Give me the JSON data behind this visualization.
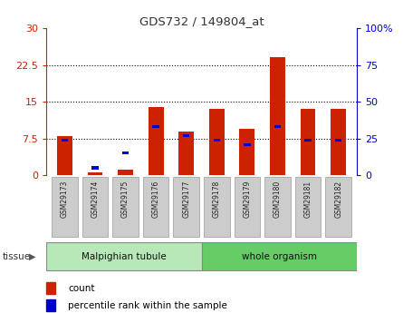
{
  "title": "GDS732 / 149804_at",
  "samples": [
    "GSM29173",
    "GSM29174",
    "GSM29175",
    "GSM29176",
    "GSM29177",
    "GSM29178",
    "GSM29179",
    "GSM29180",
    "GSM29181",
    "GSM29182"
  ],
  "counts": [
    8.0,
    0.5,
    1.2,
    14.0,
    9.0,
    13.5,
    9.5,
    24.0,
    13.5,
    13.5
  ],
  "percentiles": [
    24,
    5,
    15,
    33,
    27,
    24,
    21,
    33,
    24,
    24
  ],
  "tissue_groups": [
    {
      "label": "Malpighian tubule",
      "start": 0,
      "end": 4,
      "color": "#b8e8b8"
    },
    {
      "label": "whole organism",
      "start": 5,
      "end": 9,
      "color": "#66cc66"
    }
  ],
  "left_ylim": [
    0,
    30
  ],
  "right_ylim": [
    0,
    100
  ],
  "left_yticks": [
    0,
    7.5,
    15,
    22.5,
    30
  ],
  "right_yticks": [
    0,
    25,
    50,
    75,
    100
  ],
  "left_ytick_labels": [
    "0",
    "7.5",
    "15",
    "22.5",
    "30"
  ],
  "right_ytick_labels": [
    "0",
    "25",
    "50",
    "75",
    "100%"
  ],
  "bar_color": "#cc2200",
  "percentile_color": "#0000cc",
  "grid_color": "#000000",
  "bg_color": "#ffffff",
  "plot_bg": "#ffffff",
  "sample_box_color": "#cccccc",
  "legend_count_label": "count",
  "legend_pct_label": "percentile rank within the sample",
  "tissue_label": "tissue",
  "bar_width": 0.5
}
